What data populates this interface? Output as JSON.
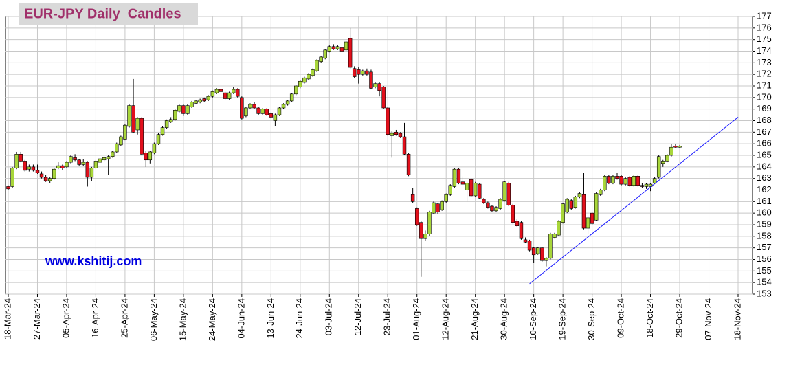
{
  "chart_data": {
    "type": "candlestick",
    "title": "EUR-JPY Daily  Candles",
    "watermark": "www.kshitij.com",
    "categories": [
      "18-Mar-24",
      null,
      null,
      null,
      null,
      null,
      null,
      "27-Mar-24",
      null,
      null,
      null,
      null,
      null,
      null,
      "05-Apr-24",
      null,
      null,
      null,
      null,
      null,
      null,
      "16-Apr-24",
      null,
      null,
      null,
      null,
      null,
      null,
      "25-Apr-24",
      null,
      null,
      null,
      null,
      null,
      null,
      "06-May-24",
      null,
      null,
      null,
      null,
      null,
      null,
      "15-May-24",
      null,
      null,
      null,
      null,
      null,
      null,
      "24-May-24",
      null,
      null,
      null,
      null,
      null,
      null,
      "04-Jun-24",
      null,
      null,
      null,
      null,
      null,
      null,
      "13-Jun-24",
      null,
      null,
      null,
      null,
      null,
      null,
      "24-Jun-24",
      null,
      null,
      null,
      null,
      null,
      null,
      "03-Jul-24",
      null,
      null,
      null,
      null,
      null,
      null,
      "12-Jul-24",
      null,
      null,
      null,
      null,
      null,
      null,
      "23-Jul-24",
      null,
      null,
      null,
      null,
      null,
      null,
      "01-Aug-24",
      null,
      null,
      null,
      null,
      null,
      null,
      "12-Aug-24",
      null,
      null,
      null,
      null,
      null,
      null,
      "21-Aug-24",
      null,
      null,
      null,
      null,
      null,
      null,
      "30-Aug-24",
      null,
      null,
      null,
      null,
      null,
      null,
      "10-Sep-24",
      null,
      null,
      null,
      null,
      null,
      null,
      "19-Sep-24",
      null,
      null,
      null,
      null,
      null,
      null,
      "30-Sep-24",
      null,
      null,
      null,
      null,
      null,
      null,
      "09-Oct-24",
      null,
      null,
      null,
      null,
      null,
      null,
      "18-Oct-24",
      null,
      null,
      null,
      null,
      null,
      null,
      "29-Oct-24",
      null,
      null,
      null,
      null,
      null,
      null,
      "07-Nov-24",
      null,
      null,
      null,
      null,
      null,
      null,
      "18-Nov-24"
    ],
    "ohlc": [
      [
        162.3,
        162.4,
        162.0,
        162.1
      ],
      [
        162.3,
        164.0,
        162.2,
        163.9
      ],
      [
        163.9,
        165.3,
        163.8,
        165.1
      ],
      [
        165.1,
        165.3,
        164.4,
        164.5
      ],
      [
        164.5,
        164.6,
        163.6,
        163.7
      ],
      [
        163.8,
        164.2,
        163.6,
        164.0
      ],
      [
        164.0,
        164.2,
        163.6,
        163.7
      ],
      [
        163.7,
        164.2,
        163.4,
        163.5
      ],
      [
        163.4,
        163.6,
        163.0,
        163.1
      ],
      [
        163.1,
        163.3,
        162.7,
        162.8
      ],
      [
        162.8,
        163.1,
        162.6,
        163.0
      ],
      [
        163.0,
        163.9,
        162.9,
        163.8
      ],
      [
        163.9,
        164.4,
        163.8,
        164.1
      ],
      [
        164.1,
        164.2,
        163.7,
        163.9
      ],
      [
        164.0,
        164.5,
        163.9,
        164.4
      ],
      [
        164.4,
        165.0,
        164.3,
        164.9
      ],
      [
        164.8,
        165.1,
        164.5,
        164.6
      ],
      [
        164.6,
        164.7,
        164.1,
        164.2
      ],
      [
        164.2,
        164.7,
        164.1,
        164.4
      ],
      [
        164.4,
        164.5,
        162.3,
        163.1
      ],
      [
        163.1,
        164.0,
        162.8,
        163.9
      ],
      [
        163.9,
        164.6,
        163.8,
        164.5
      ],
      [
        164.4,
        164.8,
        164.3,
        164.7
      ],
      [
        164.6,
        164.9,
        164.5,
        164.8
      ],
      [
        164.7,
        165.0,
        163.3,
        164.9
      ],
      [
        164.9,
        165.4,
        164.8,
        165.3
      ],
      [
        165.3,
        166.1,
        165.2,
        166.0
      ],
      [
        165.9,
        166.7,
        165.8,
        166.6
      ],
      [
        166.4,
        167.7,
        166.3,
        167.6
      ],
      [
        167.5,
        169.4,
        167.4,
        169.3
      ],
      [
        169.3,
        171.6,
        166.9,
        167.0
      ],
      [
        167.2,
        168.3,
        166.8,
        168.2
      ],
      [
        168.2,
        168.3,
        165.0,
        165.1
      ],
      [
        165.2,
        165.4,
        164.0,
        164.6
      ],
      [
        164.6,
        165.4,
        164.3,
        165.3
      ],
      [
        165.2,
        166.1,
        165.1,
        166.0
      ],
      [
        166.0,
        166.9,
        165.9,
        166.8
      ],
      [
        166.8,
        167.5,
        166.7,
        167.4
      ],
      [
        167.4,
        168.1,
        167.3,
        168.0
      ],
      [
        167.9,
        168.3,
        167.8,
        168.1
      ],
      [
        168.1,
        169.0,
        168.0,
        168.9
      ],
      [
        168.8,
        169.4,
        168.7,
        169.3
      ],
      [
        169.3,
        169.4,
        168.4,
        168.6
      ],
      [
        168.6,
        169.4,
        168.5,
        169.3
      ],
      [
        169.2,
        169.7,
        169.1,
        169.6
      ],
      [
        169.5,
        169.8,
        169.4,
        169.7
      ],
      [
        169.6,
        169.9,
        169.5,
        169.8
      ],
      [
        169.9,
        170.0,
        169.6,
        169.7
      ],
      [
        169.8,
        170.2,
        169.7,
        170.1
      ],
      [
        170.1,
        170.6,
        170.0,
        170.5
      ],
      [
        170.4,
        170.8,
        170.3,
        170.7
      ],
      [
        170.7,
        170.8,
        170.4,
        170.5
      ],
      [
        170.4,
        170.5,
        169.8,
        169.9
      ],
      [
        169.9,
        170.5,
        169.8,
        170.4
      ],
      [
        170.4,
        170.9,
        170.3,
        170.7
      ],
      [
        170.7,
        170.8,
        170.0,
        170.1
      ],
      [
        170.0,
        170.1,
        168.1,
        168.2
      ],
      [
        168.4,
        169.2,
        168.3,
        169.1
      ],
      [
        169.1,
        169.5,
        169.0,
        169.4
      ],
      [
        169.4,
        169.6,
        169.0,
        169.1
      ],
      [
        169.1,
        169.2,
        168.5,
        168.6
      ],
      [
        168.6,
        169.1,
        168.5,
        169.0
      ],
      [
        169.0,
        169.1,
        168.4,
        168.5
      ],
      [
        168.6,
        168.7,
        168.2,
        168.3
      ],
      [
        168.0,
        168.6,
        167.5,
        168.5
      ],
      [
        168.5,
        169.2,
        168.4,
        169.1
      ],
      [
        169.1,
        169.5,
        169.0,
        169.4
      ],
      [
        169.4,
        169.8,
        169.3,
        169.7
      ],
      [
        169.7,
        170.4,
        169.6,
        170.3
      ],
      [
        170.3,
        171.1,
        170.2,
        171.0
      ],
      [
        170.9,
        171.5,
        170.8,
        171.4
      ],
      [
        171.3,
        171.8,
        171.2,
        171.7
      ],
      [
        171.6,
        172.1,
        171.5,
        172.0
      ],
      [
        171.9,
        172.5,
        171.8,
        172.4
      ],
      [
        172.3,
        173.3,
        172.2,
        173.2
      ],
      [
        173.1,
        173.6,
        173.0,
        173.5
      ],
      [
        173.4,
        174.2,
        173.3,
        174.1
      ],
      [
        174.0,
        174.5,
        173.9,
        174.4
      ],
      [
        174.4,
        174.6,
        174.1,
        174.2
      ],
      [
        174.2,
        174.5,
        174.1,
        174.4
      ],
      [
        174.3,
        174.4,
        173.6,
        174.0
      ],
      [
        174.1,
        174.9,
        174.0,
        174.8
      ],
      [
        175.1,
        176.0,
        172.5,
        172.6
      ],
      [
        172.5,
        172.7,
        171.7,
        171.8
      ],
      [
        172.4,
        172.6,
        171.2,
        172.0
      ],
      [
        172.0,
        172.4,
        171.9,
        172.3
      ],
      [
        172.3,
        172.5,
        171.9,
        172.0
      ],
      [
        172.2,
        172.4,
        170.7,
        170.8
      ],
      [
        170.9,
        171.3,
        170.8,
        171.2
      ],
      [
        171.2,
        171.3,
        170.1,
        170.6
      ],
      [
        170.9,
        171.0,
        169.0,
        169.1
      ],
      [
        169.1,
        169.2,
        166.7,
        166.8
      ],
      [
        166.7,
        167.1,
        164.8,
        166.9
      ],
      [
        167.0,
        167.2,
        166.7,
        166.8
      ],
      [
        166.9,
        167.0,
        166.5,
        166.6
      ],
      [
        166.6,
        167.8,
        165.0,
        165.1
      ],
      [
        165.1,
        165.2,
        163.2,
        163.3
      ],
      [
        161.6,
        162.2,
        160.9,
        161.0
      ],
      [
        160.4,
        160.5,
        158.9,
        159.0
      ],
      [
        159.2,
        159.3,
        154.5,
        157.8
      ],
      [
        157.8,
        158.5,
        157.6,
        158.2
      ],
      [
        158.2,
        160.2,
        158.0,
        160.1
      ],
      [
        160.0,
        161.0,
        159.9,
        160.9
      ],
      [
        160.8,
        160.9,
        159.9,
        160.1
      ],
      [
        160.3,
        161.1,
        160.2,
        161.0
      ],
      [
        161.0,
        161.7,
        160.9,
        161.6
      ],
      [
        161.6,
        162.5,
        161.5,
        162.4
      ],
      [
        162.3,
        163.9,
        162.2,
        163.8
      ],
      [
        163.8,
        163.9,
        162.5,
        162.6
      ],
      [
        162.7,
        163.2,
        162.4,
        162.5
      ],
      [
        162.0,
        162.7,
        161.0,
        162.6
      ],
      [
        162.9,
        163.0,
        161.4,
        161.5
      ],
      [
        161.5,
        162.7,
        161.4,
        162.6
      ],
      [
        162.5,
        162.6,
        161.2,
        161.3
      ],
      [
        161.2,
        161.3,
        160.8,
        160.9
      ],
      [
        160.9,
        161.0,
        160.4,
        160.5
      ],
      [
        160.6,
        160.7,
        160.1,
        160.2
      ],
      [
        160.2,
        160.6,
        160.1,
        160.5
      ],
      [
        160.4,
        161.3,
        160.3,
        161.2
      ],
      [
        161.1,
        162.8,
        161.0,
        162.7
      ],
      [
        162.6,
        162.7,
        160.6,
        160.7
      ],
      [
        160.7,
        160.8,
        159.1,
        159.2
      ],
      [
        159.3,
        159.5,
        158.8,
        158.9
      ],
      [
        159.2,
        159.3,
        157.7,
        157.8
      ],
      [
        157.7,
        157.9,
        157.4,
        157.5
      ],
      [
        157.6,
        157.7,
        156.7,
        156.8
      ],
      [
        157.0,
        157.1,
        155.7,
        156.4
      ],
      [
        156.5,
        157.1,
        156.4,
        157.0
      ],
      [
        157.0,
        157.1,
        155.8,
        155.9
      ],
      [
        155.9,
        156.2,
        155.4,
        156.1
      ],
      [
        156.1,
        158.3,
        156.0,
        158.2
      ],
      [
        157.9,
        158.3,
        157.8,
        158.2
      ],
      [
        158.1,
        159.4,
        158.0,
        159.3
      ],
      [
        159.2,
        160.9,
        159.1,
        160.8
      ],
      [
        160.1,
        161.3,
        160.0,
        161.2
      ],
      [
        161.1,
        161.2,
        160.3,
        160.4
      ],
      [
        160.5,
        161.5,
        160.4,
        161.4
      ],
      [
        161.4,
        161.8,
        161.3,
        161.7
      ],
      [
        161.6,
        163.5,
        158.6,
        158.7
      ],
      [
        158.7,
        159.7,
        158.2,
        159.6
      ],
      [
        160.0,
        160.1,
        159.0,
        159.1
      ],
      [
        159.4,
        161.8,
        159.3,
        161.7
      ],
      [
        161.6,
        162.1,
        161.5,
        162.0
      ],
      [
        162.0,
        163.3,
        161.9,
        163.2
      ],
      [
        163.2,
        163.3,
        162.5,
        162.6
      ],
      [
        162.6,
        163.3,
        162.5,
        163.2
      ],
      [
        163.2,
        163.5,
        162.9,
        163.0
      ],
      [
        163.2,
        163.3,
        162.4,
        162.5
      ],
      [
        162.5,
        163.1,
        162.4,
        163.0
      ],
      [
        163.1,
        163.2,
        162.3,
        162.4
      ],
      [
        162.4,
        163.3,
        162.3,
        163.2
      ],
      [
        163.2,
        163.3,
        162.3,
        162.4
      ],
      [
        162.4,
        162.6,
        162.2,
        162.3
      ],
      [
        162.3,
        162.6,
        162.1,
        162.5
      ],
      [
        162.3,
        162.6,
        161.9,
        162.5
      ],
      [
        162.6,
        163.1,
        162.5,
        163.0
      ],
      [
        163.1,
        165.0,
        163.0,
        164.9
      ],
      [
        164.3,
        164.6,
        164.0,
        164.5
      ],
      [
        164.5,
        165.1,
        164.4,
        165.0
      ],
      [
        165.0,
        166.0,
        164.9,
        165.7
      ],
      [
        165.8,
        166.0,
        165.6,
        165.7
      ],
      [
        165.7,
        165.9,
        165.6,
        165.8
      ],
      null,
      null,
      null,
      null,
      null,
      null,
      null,
      null,
      null,
      null,
      null,
      null,
      null,
      null
    ],
    "ylim": [
      153,
      177
    ],
    "yticks": [
      153,
      154,
      155,
      156,
      157,
      158,
      159,
      160,
      161,
      162,
      163,
      164,
      165,
      166,
      167,
      168,
      169,
      170,
      171,
      172,
      173,
      174,
      175,
      176,
      177
    ],
    "grid": true,
    "up_color": "#a8d63a",
    "down_color": "#e3101c",
    "trendline": {
      "color": "#1a1aff",
      "x": [
        125,
        175
      ],
      "y": [
        153.9,
        168.3
      ]
    }
  }
}
